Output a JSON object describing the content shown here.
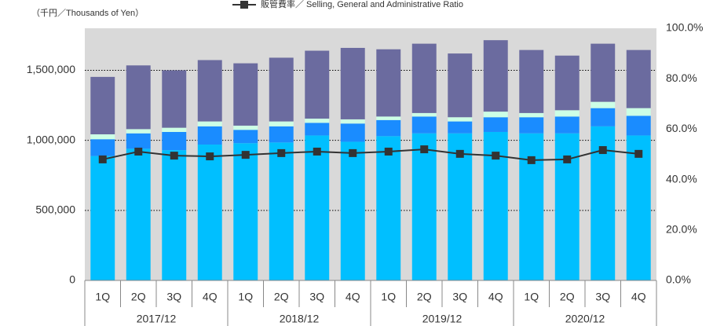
{
  "chart_data": {
    "type": "stacked_bar_line",
    "y_axis_label": "（千円／Thousands of Yen）",
    "categories": [
      "1Q",
      "2Q",
      "3Q",
      "4Q",
      "1Q",
      "2Q",
      "3Q",
      "4Q",
      "1Q",
      "2Q",
      "3Q",
      "4Q",
      "1Q",
      "2Q",
      "3Q",
      "4Q"
    ],
    "groups": [
      "2017/12",
      "2018/12",
      "2019/12",
      "2020/12"
    ],
    "series": [
      {
        "color": "#00bfff",
        "values": [
          888000,
          940000,
          930000,
          970000,
          980000,
          985000,
          1035000,
          990000,
          1030000,
          1050000,
          1050000,
          1060000,
          1050000,
          1050000,
          1100000,
          1035000
        ]
      },
      {
        "color": "#1a8cff",
        "values": [
          120000,
          110000,
          130000,
          130000,
          95000,
          115000,
          90000,
          130000,
          115000,
          120000,
          85000,
          105000,
          115000,
          120000,
          130000,
          140000
        ]
      },
      {
        "color": "#ccffe6",
        "values": [
          35000,
          30000,
          30000,
          35000,
          30000,
          35000,
          30000,
          30000,
          25000,
          25000,
          30000,
          40000,
          30000,
          45000,
          45000,
          55000
        ]
      },
      {
        "color": "#6b6b9f",
        "values": [
          410000,
          455000,
          410000,
          438000,
          445000,
          455000,
          485000,
          510000,
          480000,
          495000,
          455000,
          510000,
          450000,
          390000,
          415000,
          415000
        ]
      },
      {
        "name": "販管費率／ Selling, General and Administrative Ratio",
        "color": "#333333",
        "axis": "y2",
        "line": true,
        "values": [
          48.0,
          51.1,
          49.5,
          49.2,
          49.8,
          50.5,
          51.1,
          50.5,
          51.1,
          52.0,
          50.2,
          49.5,
          47.7,
          48.0,
          51.7,
          50.2
        ]
      }
    ],
    "ylim": [
      0,
      1800000
    ],
    "yticks": [
      0,
      {
        "value": 500000,
        "label": "500,000"
      },
      {
        "value": 1000000,
        "label": "1,000,000"
      },
      {
        "value": 1500000,
        "label": "1,500,000"
      }
    ],
    "y2lim": [
      0,
      100
    ],
    "y2ticks": [
      {
        "value": 0,
        "label": "0.0%"
      },
      {
        "value": 20,
        "label": "20.0%"
      },
      {
        "value": 40,
        "label": "40.0%"
      },
      {
        "value": 60,
        "label": "60.0%"
      },
      {
        "value": 80,
        "label": "80.0%"
      },
      {
        "value": 100,
        "label": "100.0%"
      }
    ],
    "grid": true,
    "legend": "top"
  }
}
